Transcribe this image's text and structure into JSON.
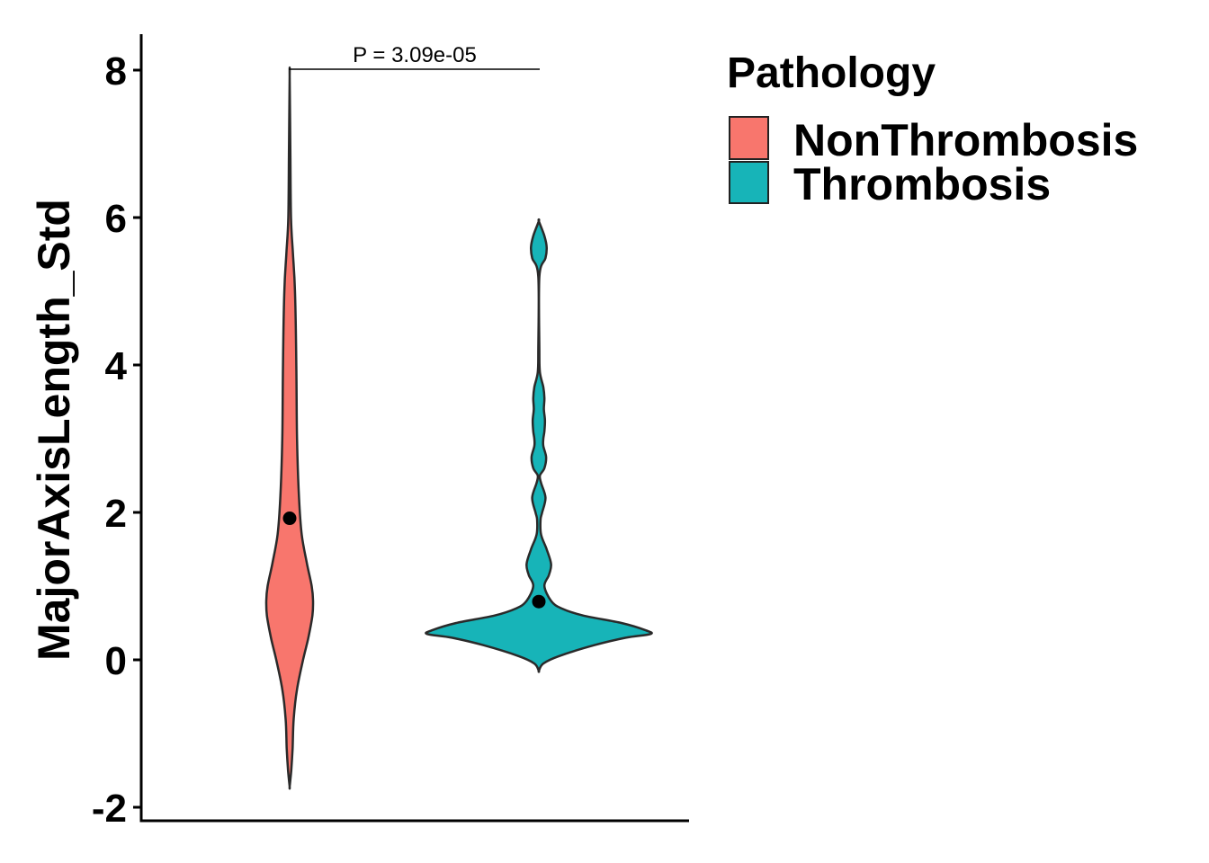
{
  "chart_data": {
    "type": "violin",
    "title": "",
    "xlabel": "",
    "ylabel": "MajorAxisLength_Std",
    "ylim": [
      -2.0,
      8.5
    ],
    "y_ticks": [
      -2,
      0,
      2,
      4,
      6,
      8
    ],
    "y_tick_labels": [
      "-2",
      "0",
      "2",
      "4",
      "6",
      "8"
    ],
    "annotation": "P = 3.09e-05",
    "legend": {
      "title": "Pathology",
      "position": "top-right",
      "entries": [
        {
          "label": "NonThrombosis",
          "color": "#F8766D"
        },
        {
          "label": "Thrombosis",
          "color": "#17B4B8"
        }
      ]
    },
    "series": [
      {
        "name": "NonThrombosis",
        "color": "#F8766D",
        "median": 1.92,
        "min": -1.72,
        "max": 7.92,
        "density": [
          [
            -1.72,
            0.0
          ],
          [
            -1.5,
            0.012
          ],
          [
            -1.2,
            0.022
          ],
          [
            -0.8,
            0.03
          ],
          [
            -0.4,
            0.055
          ],
          [
            0.0,
            0.1
          ],
          [
            0.3,
            0.14
          ],
          [
            0.6,
            0.17
          ],
          [
            0.8,
            0.175
          ],
          [
            1.0,
            0.165
          ],
          [
            1.3,
            0.13
          ],
          [
            1.7,
            0.09
          ],
          [
            2.2,
            0.07
          ],
          [
            3.0,
            0.055
          ],
          [
            4.0,
            0.05
          ],
          [
            5.0,
            0.04
          ],
          [
            5.5,
            0.025
          ],
          [
            6.0,
            0.01
          ],
          [
            7.0,
            0.005
          ],
          [
            7.92,
            0.0
          ]
        ]
      },
      {
        "name": "Thrombosis",
        "color": "#17B4B8",
        "median": 0.79,
        "min": -0.15,
        "max": 5.95,
        "density": [
          [
            -0.15,
            0.0
          ],
          [
            -0.05,
            0.04
          ],
          [
            0.05,
            0.18
          ],
          [
            0.2,
            0.5
          ],
          [
            0.3,
            0.78
          ],
          [
            0.35,
            1.0
          ],
          [
            0.4,
            0.96
          ],
          [
            0.5,
            0.74
          ],
          [
            0.6,
            0.4
          ],
          [
            0.7,
            0.2
          ],
          [
            0.8,
            0.11
          ],
          [
            1.0,
            0.05
          ],
          [
            1.15,
            0.09
          ],
          [
            1.3,
            0.11
          ],
          [
            1.5,
            0.07
          ],
          [
            1.7,
            0.02
          ],
          [
            1.9,
            0.015
          ],
          [
            2.0,
            0.03
          ],
          [
            2.2,
            0.06
          ],
          [
            2.4,
            0.02
          ],
          [
            2.5,
            0.01
          ],
          [
            2.6,
            0.05
          ],
          [
            2.75,
            0.065
          ],
          [
            2.9,
            0.04
          ],
          [
            3.0,
            0.04
          ],
          [
            3.1,
            0.05
          ],
          [
            3.25,
            0.055
          ],
          [
            3.4,
            0.045
          ],
          [
            3.55,
            0.05
          ],
          [
            3.7,
            0.04
          ],
          [
            3.9,
            0.01
          ],
          [
            4.2,
            0.005
          ],
          [
            5.2,
            0.005
          ],
          [
            5.45,
            0.06
          ],
          [
            5.6,
            0.07
          ],
          [
            5.75,
            0.05
          ],
          [
            5.95,
            0.0
          ]
        ]
      }
    ]
  }
}
